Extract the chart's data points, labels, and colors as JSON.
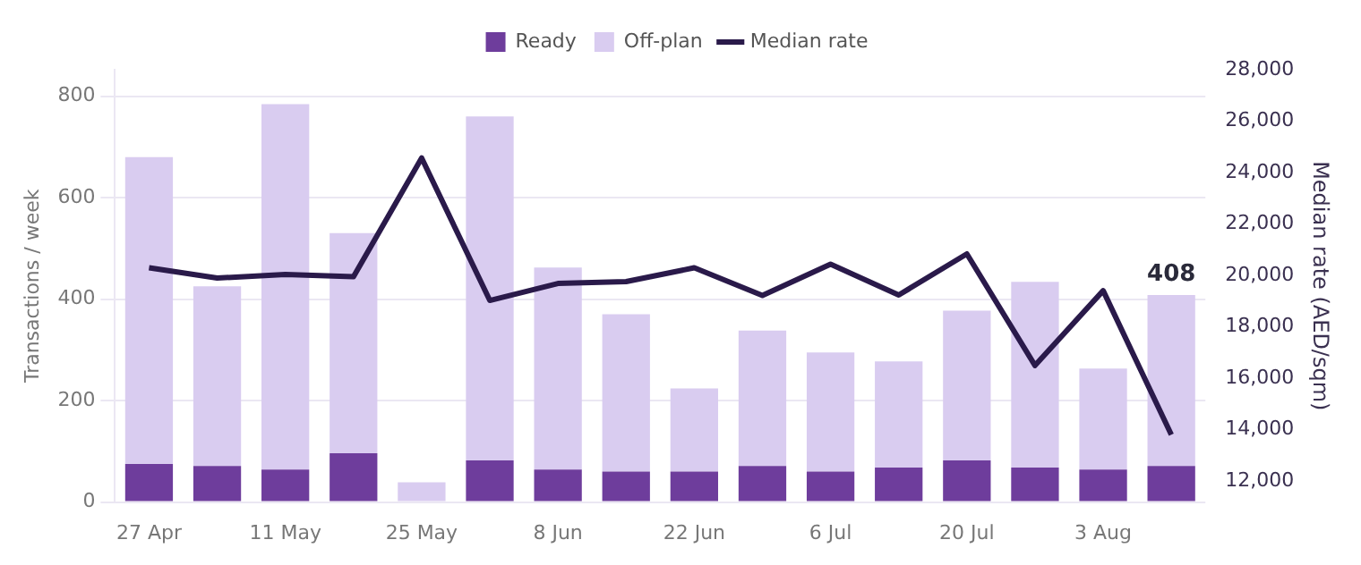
{
  "chart_data": {
    "type": "bar",
    "stacked": true,
    "xlabel": null,
    "ylabel": "Transactions / week",
    "y2label": "Median rate (AED/sqm)",
    "categories": [
      "27 Apr",
      null,
      "11 May",
      null,
      "25 May",
      null,
      "8 Jun",
      null,
      "22 Jun",
      null,
      "6 Jul",
      null,
      "20 Jul",
      null,
      "3 Aug",
      null
    ],
    "series": [
      {
        "name": "Ready",
        "color": "#6e3d9c",
        "values": [
          75,
          71,
          64,
          96,
          0,
          82,
          64,
          60,
          60,
          71,
          60,
          68,
          82,
          68,
          64,
          71
        ]
      },
      {
        "name": "Off-plan",
        "color": "#d9ccf0",
        "values": [
          605,
          354,
          720,
          434,
          39,
          678,
          398,
          310,
          164,
          267,
          235,
          209,
          295,
          366,
          199,
          337
        ]
      },
      {
        "name": "Median rate",
        "type": "line",
        "axis": "y2",
        "color": "#2a1a4a",
        "values": [
          20300,
          19900,
          20040,
          19950,
          24570,
          19030,
          19690,
          19760,
          20300,
          19220,
          20440,
          19240,
          20840,
          16500,
          19410,
          13810
        ]
      }
    ],
    "totals": [
      null,
      null,
      null,
      null,
      null,
      null,
      null,
      null,
      null,
      null,
      null,
      null,
      null,
      null,
      null,
      "408"
    ],
    "ylim": [
      0,
      852
    ],
    "yticks": [
      0,
      200,
      400,
      600,
      800
    ],
    "y2lim": [
      11190,
      28000
    ],
    "y2ticks": [
      {
        "value": 12000,
        "label": "12,000"
      },
      {
        "value": 14000,
        "label": "14,000"
      },
      {
        "value": 16000,
        "label": "16,000"
      },
      {
        "value": 18000,
        "label": "18,000"
      },
      {
        "value": 20000,
        "label": "20,000"
      },
      {
        "value": 22000,
        "label": "22,000"
      },
      {
        "value": 24000,
        "label": "24,000"
      },
      {
        "value": 26000,
        "label": "26,000"
      },
      {
        "value": 28000,
        "label": "28,000"
      }
    ],
    "grid": "y",
    "legend": "top",
    "marker": "none",
    "line_style": "solid"
  }
}
